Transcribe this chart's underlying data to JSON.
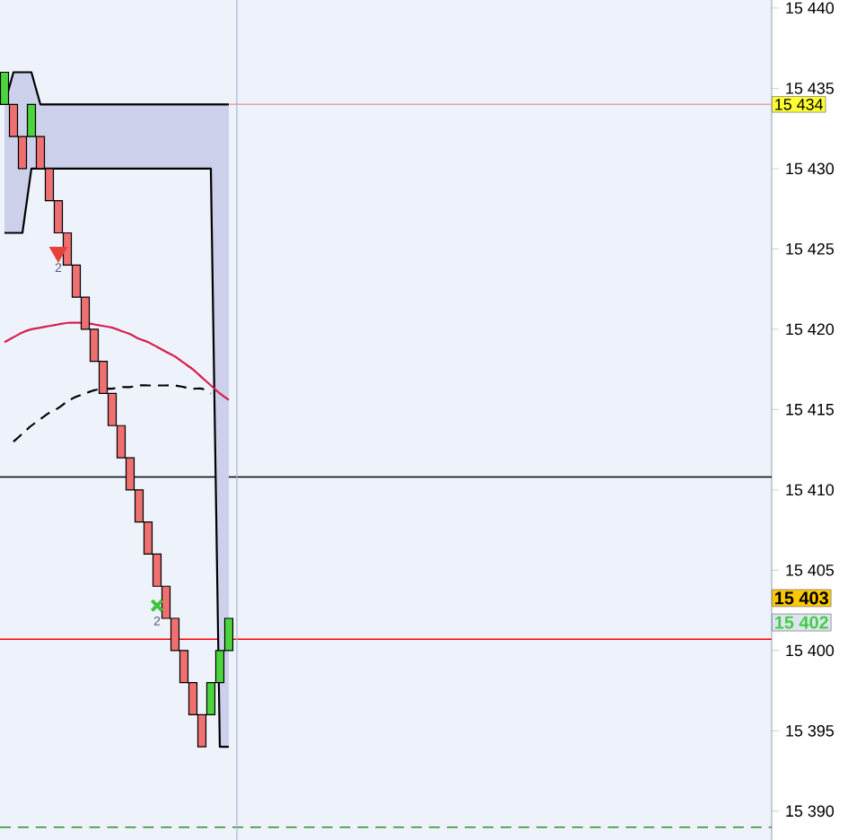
{
  "chart_data": {
    "type": "candlestick",
    "categories": [
      null,
      null,
      null,
      null,
      null,
      null,
      null,
      null,
      null,
      null,
      null,
      null,
      null,
      null,
      null,
      null,
      null,
      null,
      null,
      null,
      null,
      null,
      null,
      null,
      null,
      null,
      null,
      null,
      null,
      null,
      null,
      null,
      null,
      null,
      null,
      null,
      null,
      null,
      null,
      null,
      null,
      null,
      null,
      null,
      null,
      null,
      null,
      null,
      null,
      null,
      null,
      null,
      null,
      null,
      null,
      null,
      null,
      null,
      null,
      null,
      null,
      null,
      null,
      null,
      null,
      null,
      null,
      null,
      null,
      null,
      null,
      null,
      null,
      null,
      null,
      null,
      null,
      null,
      null,
      null,
      null,
      null,
      null,
      null,
      null,
      null
    ],
    "ohlc": [
      [
        15434,
        15436,
        15434,
        15436
      ],
      [
        15434,
        15434,
        15432,
        15432
      ],
      [
        15432,
        15432,
        15430,
        15430
      ],
      [
        15432,
        15434,
        15432,
        15434
      ],
      [
        15432,
        15432,
        15430,
        15430
      ],
      [
        15430,
        15430,
        15428,
        15428
      ],
      [
        15428,
        15428,
        15426,
        15426
      ],
      [
        15426,
        15426,
        15424,
        15424
      ],
      [
        15424,
        15424,
        15422,
        15422
      ],
      [
        15422,
        15422,
        15420,
        15420
      ],
      [
        15420,
        15420,
        15418,
        15418
      ],
      [
        15418,
        15418,
        15416,
        15416
      ],
      [
        15416,
        15416,
        15414,
        15414
      ],
      [
        15414,
        15414,
        15412,
        15412
      ],
      [
        15412,
        15412,
        15410,
        15410
      ],
      [
        15410,
        15410,
        15408,
        15408
      ],
      [
        15408,
        15408,
        15406,
        15406
      ],
      [
        15406,
        15406,
        15404,
        15404
      ],
      [
        15404,
        15404,
        15402,
        15402
      ],
      [
        15402,
        15402,
        15400,
        15400
      ],
      [
        15400,
        15400,
        15398,
        15398
      ],
      [
        15398,
        15398,
        15396,
        15396
      ],
      [
        15396,
        15396,
        15394,
        15394
      ],
      [
        15396,
        15398,
        15396,
        15398
      ],
      [
        15398,
        15400,
        15398,
        15400
      ],
      [
        15400,
        15402,
        15400,
        15402
      ],
      null,
      null,
      null,
      null,
      null,
      null,
      null,
      null,
      null,
      null,
      null,
      null,
      null,
      null,
      null,
      null,
      null,
      null,
      null,
      null,
      null,
      null,
      null,
      null,
      null,
      null,
      null,
      null,
      null,
      null,
      null,
      null,
      null,
      null,
      null,
      null,
      null,
      null,
      null,
      null,
      null,
      null,
      null,
      null,
      null,
      null,
      null,
      null,
      null,
      null,
      null,
      null,
      null,
      null,
      null,
      null,
      null,
      null,
      null,
      null
    ],
    "colors": [
      "#4cd43c",
      "#ee7070",
      "#ee7070",
      "#4cd43c",
      "#ee7070",
      "#ee7070",
      "#ee7070",
      "#ee7070",
      "#ee7070",
      "#ee7070",
      "#ee7070",
      "#ee7070",
      "#ee7070",
      "#ee7070",
      "#ee7070",
      "#ee7070",
      "#ee7070",
      "#ee7070",
      "#ee7070",
      "#ee7070",
      "#ee7070",
      "#ee7070",
      "#ee7070",
      "#4cd43c",
      "#4cd43c",
      "#4cd43c",
      null,
      null,
      null,
      null,
      null,
      null,
      null,
      null,
      null,
      null,
      null,
      null,
      null,
      null,
      null,
      null,
      null,
      null,
      null,
      null,
      null,
      null,
      null,
      null,
      null,
      null,
      null,
      null,
      null,
      null,
      null,
      null,
      null,
      null,
      null,
      null,
      null,
      null,
      null,
      null,
      null,
      null,
      null,
      null,
      null,
      null,
      null,
      null,
      null,
      null,
      null,
      null,
      null,
      null,
      null,
      null,
      null,
      null,
      null,
      null
    ],
    "series": [
      {
        "type": "line",
        "color": "#000000",
        "values": [
          15434,
          15436,
          15436,
          15436,
          15434,
          15434,
          15434,
          15434,
          15434,
          15434,
          15434,
          15434,
          15434,
          15434,
          15434,
          15434,
          15434,
          15434,
          15434,
          15434,
          15434,
          15434,
          15434,
          15434,
          15434,
          15434,
          null,
          null,
          null,
          null,
          null,
          null,
          null,
          null,
          null,
          null,
          null,
          null,
          null,
          null,
          null,
          null,
          null,
          null,
          null,
          null,
          null,
          null,
          null,
          null,
          null,
          null,
          null,
          null,
          null,
          null,
          null,
          null,
          null,
          null,
          null,
          null,
          null,
          null,
          null,
          null,
          null,
          null,
          null,
          null,
          null,
          null,
          null,
          null,
          null,
          null,
          null,
          null,
          null,
          null,
          null,
          null,
          null,
          null,
          null,
          null
        ],
        "upper": [
          15434,
          15436,
          15436,
          15436,
          15434,
          15434,
          15434,
          15434,
          15434,
          15434,
          15434,
          15434,
          15434,
          15434,
          15434,
          15434,
          15434,
          15434,
          15434,
          15434,
          15434,
          15434,
          15434,
          15434,
          15434,
          15434,
          null,
          null,
          null,
          null,
          null,
          null,
          null,
          null,
          null,
          null,
          null,
          null,
          null,
          null,
          null,
          null,
          null,
          null,
          null,
          null,
          null,
          null,
          null,
          null,
          null,
          null,
          null,
          null,
          null,
          null,
          null,
          null,
          null,
          null,
          null,
          null,
          null,
          null,
          null,
          null,
          null,
          null,
          null,
          null,
          null,
          null,
          null,
          null,
          null,
          null,
          null,
          null,
          null,
          null,
          null,
          null,
          null,
          null,
          null,
          null
        ],
        "lower": [
          15426,
          15426,
          15426,
          15430,
          15430,
          15430,
          15430,
          15430,
          15430,
          15430,
          15430,
          15430,
          15430,
          15430,
          15430,
          15430,
          15430,
          15430,
          15430,
          15430,
          15430,
          15430,
          15430,
          15430,
          15394,
          15394,
          null,
          null,
          null,
          null,
          null,
          null,
          null,
          null,
          null,
          null,
          null,
          null,
          null,
          null,
          null,
          null,
          null,
          null,
          null,
          null,
          null,
          null,
          null,
          null,
          null,
          null,
          null,
          null,
          null,
          null,
          null,
          null,
          null,
          null,
          null,
          null,
          null,
          null,
          null,
          null,
          null,
          null,
          null,
          null,
          null,
          null,
          null,
          null,
          null,
          null,
          null,
          null,
          null,
          null,
          null,
          null,
          null,
          null,
          null,
          null
        ]
      },
      {
        "type": "line",
        "color": "#000000",
        "values": [
          15426,
          15426,
          15426,
          15430,
          15430,
          15430,
          15430,
          15430,
          15430,
          15430,
          15430,
          15430,
          15430,
          15430,
          15430,
          15430,
          15430,
          15430,
          15430,
          15430,
          15430,
          15430,
          15430,
          15430,
          15394,
          15394,
          null,
          null,
          null,
          null,
          null,
          null,
          null,
          null,
          null,
          null,
          null,
          null,
          null,
          null,
          null,
          null,
          null,
          null,
          null,
          null,
          null,
          null,
          null,
          null,
          null,
          null,
          null,
          null,
          null,
          null,
          null,
          null,
          null,
          null,
          null,
          null,
          null,
          null,
          null,
          null,
          null,
          null,
          null,
          null,
          null,
          null,
          null,
          null,
          null,
          null,
          null,
          null,
          null,
          null,
          null,
          null,
          null,
          null,
          null,
          null
        ]
      },
      {
        "type": "line",
        "color": "#d6204e",
        "values": [
          15419.2,
          15419.5,
          15419.8,
          15420.0,
          15420.1,
          15420.2,
          15420.3,
          15420.4,
          15420.4,
          15420.4,
          15420.3,
          15420.2,
          15420.1,
          15419.9,
          15419.7,
          15419.4,
          15419.2,
          15418.9,
          15418.6,
          15418.3,
          15417.9,
          15417.5,
          15417.0,
          15416.5,
          15416.0,
          15415.6,
          null,
          null,
          null,
          null,
          null,
          null,
          null,
          null,
          null,
          null,
          null,
          null,
          null,
          null,
          null,
          null,
          null,
          null,
          null,
          null,
          null,
          null,
          null,
          null,
          null,
          null,
          null,
          null,
          null,
          null,
          null,
          null,
          null,
          null,
          null,
          null,
          null,
          null,
          null,
          null,
          null,
          null,
          null,
          null,
          null,
          null,
          null,
          null,
          null,
          null,
          null,
          null,
          null,
          null,
          null,
          null,
          null,
          null,
          null,
          null
        ]
      },
      {
        "type": "line",
        "color": "#000000",
        "line_style": "dashed",
        "values": [
          null,
          15413.0,
          15413.5,
          15414.0,
          15414.4,
          15414.8,
          15415.1,
          15415.5,
          15415.8,
          15416.0,
          15416.2,
          15416.3,
          15416.3,
          15416.4,
          15416.4,
          15416.5,
          15416.5,
          15416.5,
          15416.5,
          15416.5,
          15416.4,
          15416.3,
          15416.3,
          15416.0,
          null,
          null,
          null,
          null,
          null,
          null,
          null,
          null,
          null,
          null,
          null,
          null,
          null,
          null,
          null,
          null,
          null,
          null,
          null,
          null,
          null,
          null,
          null,
          null,
          null,
          null,
          null,
          null,
          null,
          null,
          null,
          null,
          null,
          null,
          null,
          null,
          null,
          null,
          null,
          null,
          null,
          null,
          null,
          null,
          null,
          null,
          null,
          null,
          null,
          null,
          null,
          null,
          null,
          null,
          null,
          null,
          null,
          null,
          null,
          null,
          null,
          null
        ]
      },
      {
        "type": "scatter",
        "color": "#e8403a",
        "marker": "triangle",
        "values": [
          null,
          null,
          null,
          null,
          null,
          null,
          15424.8,
          null,
          null,
          null,
          null,
          null,
          null,
          null,
          null,
          null,
          null,
          null,
          null,
          null,
          null,
          null,
          null,
          null,
          null,
          null,
          null,
          null,
          null,
          null,
          null,
          null,
          null,
          null,
          null,
          null,
          null,
          null,
          null,
          null,
          null,
          null,
          null,
          null,
          null,
          null,
          null,
          null,
          null,
          null,
          null,
          null,
          null,
          null,
          null,
          null,
          null,
          null,
          null,
          null,
          null,
          null,
          null,
          null,
          null,
          null,
          null,
          null,
          null,
          null,
          null,
          null,
          null,
          null,
          null,
          null,
          null,
          null,
          null,
          null,
          null,
          null,
          null,
          null,
          null,
          null
        ]
      },
      {
        "type": "scatter",
        "color": "#3cc43c",
        "marker": "cross",
        "values": [
          null,
          null,
          null,
          null,
          null,
          null,
          null,
          null,
          null,
          null,
          null,
          null,
          null,
          null,
          null,
          null,
          null,
          15402.8,
          null,
          null,
          null,
          null,
          null,
          null,
          null,
          null,
          null,
          null,
          null,
          null,
          null,
          null,
          null,
          null,
          null,
          null,
          null,
          null,
          null,
          null,
          null,
          null,
          null,
          null,
          null,
          null,
          null,
          null,
          null,
          null,
          null,
          null,
          null,
          null,
          null,
          null,
          null,
          null,
          null,
          null,
          null,
          null,
          null,
          null,
          null,
          null,
          null,
          null,
          null,
          null,
          null,
          null,
          null,
          null,
          null,
          null,
          null,
          null,
          null,
          null,
          null,
          null,
          null,
          null,
          null,
          null
        ]
      }
    ],
    "ylim": [
      15388.2,
      15440.5
    ],
    "yticks": [
      {
        "value": 15390,
        "label": "15 390"
      },
      {
        "value": 15395,
        "label": "15 395"
      },
      {
        "value": 15400,
        "label": "15 400"
      },
      {
        "value": 15405,
        "label": "15 405"
      },
      {
        "value": 15410,
        "label": "15 410"
      },
      {
        "value": 15415,
        "label": "15 415"
      },
      {
        "value": 15420,
        "label": "15 420"
      },
      {
        "value": 15425,
        "label": "15 425"
      },
      {
        "value": 15430,
        "label": "15 430"
      },
      {
        "value": 15435,
        "label": "15 435"
      },
      {
        "value": 15440,
        "label": "15 440"
      }
    ],
    "tick_labels": "y",
    "ref_lines": [
      {
        "axis": "y",
        "value": 15434,
        "label": "15 434",
        "color": "#f0a0a8"
      },
      {
        "axis": "y",
        "value": 15410.8,
        "color": "#000000"
      },
      {
        "axis": "y",
        "value": 15400.7,
        "color": "#ff0000"
      },
      {
        "axis": "y",
        "value": 15389,
        "color": "#2e8b2e",
        "line_style": "dashed"
      }
    ],
    "annotations": [
      "2",
      "2",
      "15 403",
      "15 402"
    ]
  }
}
